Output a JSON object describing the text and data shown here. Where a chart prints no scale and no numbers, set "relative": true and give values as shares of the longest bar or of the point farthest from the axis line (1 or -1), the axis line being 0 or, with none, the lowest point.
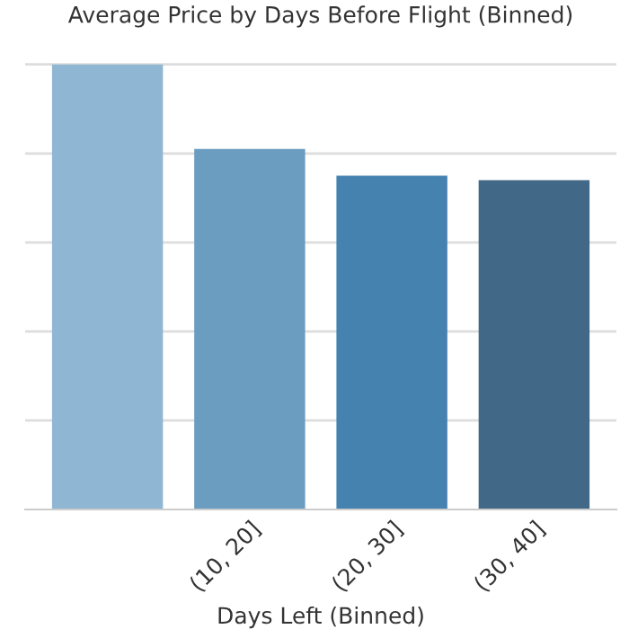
{
  "chart_data": {
    "type": "bar",
    "title": "Average Price by Days Before Flight (Binned)",
    "xlabel": "Days Left (Binned)",
    "categories": [
      null,
      "(10, 20]",
      "(20, 30]",
      "(30, 40]"
    ],
    "values": [
      1,
      0.81,
      0.75,
      0.74
    ],
    "colors": [
      "#8fb6d2",
      "#6b9dc0",
      "#4682b0",
      "#416886"
    ],
    "relative": true,
    "grid": "y"
  }
}
